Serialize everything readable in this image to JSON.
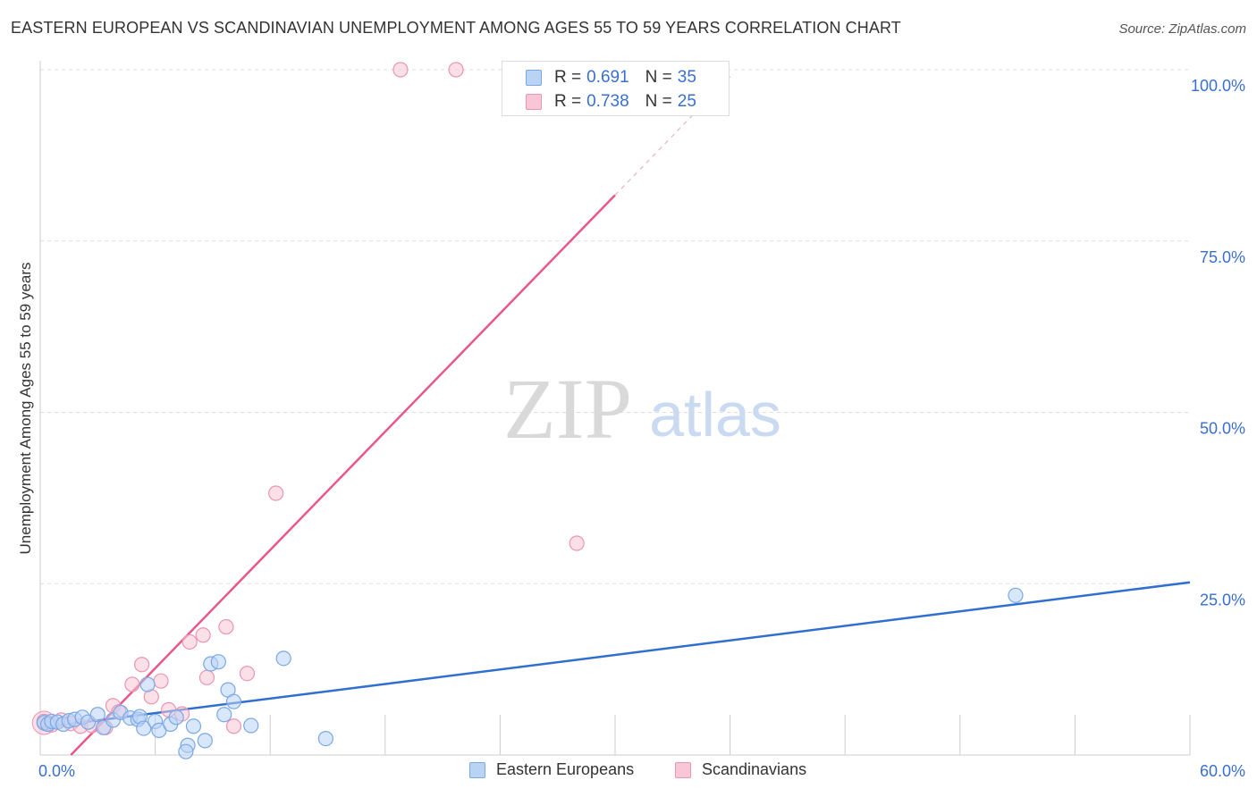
{
  "header": {
    "title": "EASTERN EUROPEAN VS SCANDINAVIAN UNEMPLOYMENT AMONG AGES 55 TO 59 YEARS CORRELATION CHART",
    "source": "Source: ZipAtlas.com"
  },
  "watermark": {
    "zip": "ZIP",
    "atlas": "atlas"
  },
  "legend": {
    "rows": [
      {
        "r_label": "R =",
        "r_value": "0.691",
        "n_label": "N =",
        "n_value": "35"
      },
      {
        "r_label": "R =",
        "r_value": "0.738",
        "n_label": "N =",
        "n_value": "25"
      }
    ]
  },
  "bottom_legend": {
    "items": [
      {
        "label": "Eastern Europeans"
      },
      {
        "label": "Scandinavians"
      }
    ]
  },
  "colors": {
    "blue_fill": "#b9d3f5",
    "blue_stroke": "#7aa8e6",
    "blue_line": "#2f6fd0",
    "pink_fill": "#f8c6d6",
    "pink_stroke": "#ec94b3",
    "pink_line": "#e8578a",
    "axis_text": "#3a6fd0",
    "grid": "#dddddd"
  },
  "chart_data": {
    "type": "scatter",
    "title": "EASTERN EUROPEAN VS SCANDINAVIAN UNEMPLOYMENT AMONG AGES 55 TO 59 YEARS CORRELATION CHART",
    "xlabel": "",
    "ylabel": "Unemployment Among Ages 55 to 59 years",
    "xlim": [
      0,
      60
    ],
    "ylim": [
      0,
      100
    ],
    "x_ticks": [
      {
        "value": 0,
        "label": "0.0%"
      },
      {
        "value": 60,
        "label": "60.0%"
      }
    ],
    "y_ticks": [
      {
        "value": 25,
        "label": "25.0%"
      },
      {
        "value": 50,
        "label": "50.0%"
      },
      {
        "value": 75,
        "label": "75.0%"
      },
      {
        "value": 100,
        "label": "100.0%"
      }
    ],
    "grid": true,
    "series": [
      {
        "name": "Eastern Europeans",
        "R": 0.691,
        "N": 35,
        "points": [
          [
            0.2,
            4.7
          ],
          [
            0.4,
            4.5
          ],
          [
            0.6,
            4.9
          ],
          [
            0.9,
            4.8
          ],
          [
            1.2,
            4.5
          ],
          [
            1.5,
            5.0
          ],
          [
            1.8,
            5.2
          ],
          [
            2.2,
            5.5
          ],
          [
            2.5,
            4.8
          ],
          [
            3.0,
            5.9
          ],
          [
            3.3,
            4.0
          ],
          [
            3.8,
            5.1
          ],
          [
            4.2,
            6.2
          ],
          [
            4.7,
            5.4
          ],
          [
            5.1,
            5.2
          ],
          [
            5.2,
            5.6
          ],
          [
            5.4,
            3.9
          ],
          [
            5.6,
            10.3
          ],
          [
            6.0,
            4.9
          ],
          [
            6.2,
            3.6
          ],
          [
            6.8,
            4.5
          ],
          [
            7.1,
            5.5
          ],
          [
            7.7,
            1.4
          ],
          [
            7.6,
            0.5
          ],
          [
            8.0,
            4.2
          ],
          [
            8.6,
            2.1
          ],
          [
            8.9,
            13.3
          ],
          [
            9.3,
            13.6
          ],
          [
            9.6,
            5.9
          ],
          [
            9.8,
            9.5
          ],
          [
            10.1,
            7.8
          ],
          [
            11.0,
            4.3
          ],
          [
            12.7,
            14.1
          ],
          [
            14.9,
            2.4
          ],
          [
            50.9,
            23.3
          ]
        ],
        "trend": {
          "x": [
            0,
            60
          ],
          "y": [
            4.0,
            25.2
          ]
        }
      },
      {
        "name": "Scandinavians",
        "R": 0.738,
        "N": 25,
        "points": [
          [
            0.2,
            4.9
          ],
          [
            0.6,
            4.4
          ],
          [
            1.1,
            5.1
          ],
          [
            1.6,
            4.6
          ],
          [
            2.1,
            4.2
          ],
          [
            2.7,
            4.3
          ],
          [
            3.4,
            4.0
          ],
          [
            3.8,
            7.2
          ],
          [
            4.1,
            6.3
          ],
          [
            4.8,
            10.3
          ],
          [
            5.3,
            13.2
          ],
          [
            5.8,
            8.5
          ],
          [
            6.3,
            10.8
          ],
          [
            6.7,
            6.6
          ],
          [
            7.4,
            6.0
          ],
          [
            7.8,
            16.5
          ],
          [
            8.5,
            17.5
          ],
          [
            8.7,
            11.3
          ],
          [
            9.7,
            18.7
          ],
          [
            10.1,
            4.2
          ],
          [
            10.8,
            11.9
          ],
          [
            12.3,
            38.2
          ],
          [
            18.8,
            100.0
          ],
          [
            21.7,
            100.0
          ],
          [
            28.0,
            30.9
          ]
        ],
        "trend": {
          "x": [
            1.6,
            30.0
          ],
          "y": [
            0,
            81.7
          ]
        },
        "trend_extension": {
          "x": [
            30.0,
            36.0
          ],
          "y": [
            81.7,
            99.0
          ]
        }
      }
    ]
  }
}
